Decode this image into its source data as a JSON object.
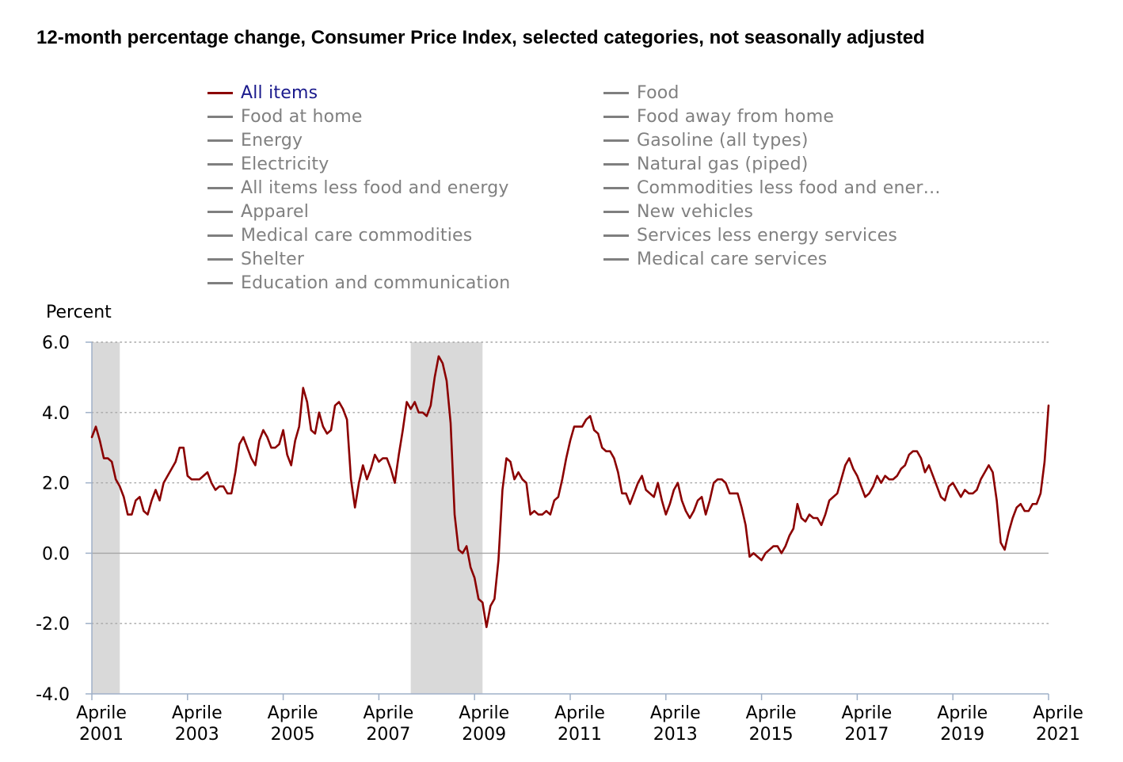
{
  "title": "12-month percentage change, Consumer Price Index, selected categories, not seasonally adjusted",
  "legend": {
    "items": [
      {
        "label": "All items",
        "active": true
      },
      {
        "label": "Food"
      },
      {
        "label": "Food at home"
      },
      {
        "label": "Food away from home"
      },
      {
        "label": "Energy"
      },
      {
        "label": "Gasoline (all types)"
      },
      {
        "label": "Electricity"
      },
      {
        "label": "Natural gas (piped)"
      },
      {
        "label": "All items less food and energy"
      },
      {
        "label": "Commodities less food and ener…"
      },
      {
        "label": "Apparel"
      },
      {
        "label": "New vehicles"
      },
      {
        "label": "Medical care commodities"
      },
      {
        "label": "Services less energy services"
      },
      {
        "label": "Shelter"
      },
      {
        "label": "Medical care services"
      },
      {
        "label": "Education and communication"
      }
    ]
  },
  "colors": {
    "series_line": "#8b0000",
    "legend_inactive_swatch": "#7f7f7f",
    "legend_inactive_text": "#808080",
    "legend_active_text": "#1a1a8c",
    "recession_shading": "#d9d9d9",
    "grid": "#a6a6a6"
  },
  "chart_data": {
    "type": "line",
    "title": "12-month percentage change, Consumer Price Index, selected categories, not seasonally adjusted",
    "ylabel": "Percent",
    "xlabel": "",
    "ylim": [
      -4.0,
      6.0
    ],
    "yticks": [
      -4.0,
      -2.0,
      0.0,
      2.0,
      4.0,
      6.0
    ],
    "ytick_labels": [
      "-4.0",
      "-2.0",
      "0.0",
      "2.0",
      "4.0",
      "6.0"
    ],
    "xlim": [
      "2001-04",
      "2021-04"
    ],
    "xticks": [
      "2001-04",
      "2003-04",
      "2005-04",
      "2007-04",
      "2009-04",
      "2011-04",
      "2013-04",
      "2015-04",
      "2017-04",
      "2019-04",
      "2021-04"
    ],
    "xtick_labels": [
      [
        "Aprile",
        "2001"
      ],
      [
        "Aprile",
        "2003"
      ],
      [
        "Aprile",
        "2005"
      ],
      [
        "Aprile",
        "2007"
      ],
      [
        "Aprile",
        "2009"
      ],
      [
        "Aprile",
        "2011"
      ],
      [
        "Aprile",
        "2013"
      ],
      [
        "Aprile",
        "2015"
      ],
      [
        "Aprile",
        "2017"
      ],
      [
        "Aprile",
        "2019"
      ],
      [
        "Aprile",
        "2021"
      ]
    ],
    "grid": "horizontal dotted",
    "shaded_periods": [
      {
        "start": "2001-04",
        "end": "2001-11"
      },
      {
        "start": "2007-12",
        "end": "2009-06"
      }
    ],
    "series": [
      {
        "name": "All items",
        "start": "2001-04",
        "frequency": "monthly",
        "values": [
          3.3,
          3.6,
          3.2,
          2.7,
          2.7,
          2.6,
          2.1,
          1.9,
          1.6,
          1.1,
          1.1,
          1.5,
          1.6,
          1.2,
          1.1,
          1.5,
          1.8,
          1.5,
          2.0,
          2.2,
          2.4,
          2.6,
          3.0,
          3.0,
          2.2,
          2.1,
          2.1,
          2.1,
          2.2,
          2.3,
          2.0,
          1.8,
          1.9,
          1.9,
          1.7,
          1.7,
          2.3,
          3.1,
          3.3,
          3.0,
          2.7,
          2.5,
          3.2,
          3.5,
          3.3,
          3.0,
          3.0,
          3.1,
          3.5,
          2.8,
          2.5,
          3.2,
          3.6,
          4.7,
          4.3,
          3.5,
          3.4,
          4.0,
          3.6,
          3.4,
          3.5,
          4.2,
          4.3,
          4.1,
          3.8,
          2.1,
          1.3,
          2.0,
          2.5,
          2.1,
          2.4,
          2.8,
          2.6,
          2.7,
          2.7,
          2.4,
          2.0,
          2.8,
          3.5,
          4.3,
          4.1,
          4.3,
          4.0,
          4.0,
          3.9,
          4.2,
          5.0,
          5.6,
          5.4,
          4.9,
          3.7,
          1.1,
          0.1,
          0.0,
          0.2,
          -0.4,
          -0.7,
          -1.3,
          -1.4,
          -2.1,
          -1.5,
          -1.3,
          -0.2,
          1.8,
          2.7,
          2.6,
          2.1,
          2.3,
          2.1,
          2.0,
          1.1,
          1.2,
          1.1,
          1.1,
          1.2,
          1.1,
          1.5,
          1.6,
          2.1,
          2.7,
          3.2,
          3.6,
          3.6,
          3.6,
          3.8,
          3.9,
          3.5,
          3.4,
          3.0,
          2.9,
          2.9,
          2.7,
          2.3,
          1.7,
          1.7,
          1.4,
          1.7,
          2.0,
          2.2,
          1.8,
          1.7,
          1.6,
          2.0,
          1.5,
          1.1,
          1.4,
          1.8,
          2.0,
          1.5,
          1.2,
          1.0,
          1.2,
          1.5,
          1.6,
          1.1,
          1.5,
          2.0,
          2.1,
          2.1,
          2.0,
          1.7,
          1.7,
          1.7,
          1.3,
          0.8,
          -0.1,
          0.0,
          -0.1,
          -0.2,
          0.0,
          0.1,
          0.2,
          0.2,
          0.0,
          0.2,
          0.5,
          0.7,
          1.4,
          1.0,
          0.9,
          1.1,
          1.0,
          1.0,
          0.8,
          1.1,
          1.5,
          1.6,
          1.7,
          2.1,
          2.5,
          2.7,
          2.4,
          2.2,
          1.9,
          1.6,
          1.7,
          1.9,
          2.2,
          2.0,
          2.2,
          2.1,
          2.1,
          2.2,
          2.4,
          2.5,
          2.8,
          2.9,
          2.9,
          2.7,
          2.3,
          2.5,
          2.2,
          1.9,
          1.6,
          1.5,
          1.9,
          2.0,
          1.8,
          1.6,
          1.8,
          1.7,
          1.7,
          1.8,
          2.1,
          2.3,
          2.5,
          2.3,
          1.5,
          0.3,
          0.1,
          0.6,
          1.0,
          1.3,
          1.4,
          1.2,
          1.2,
          1.4,
          1.4,
          1.7,
          2.6,
          4.2
        ]
      }
    ]
  }
}
